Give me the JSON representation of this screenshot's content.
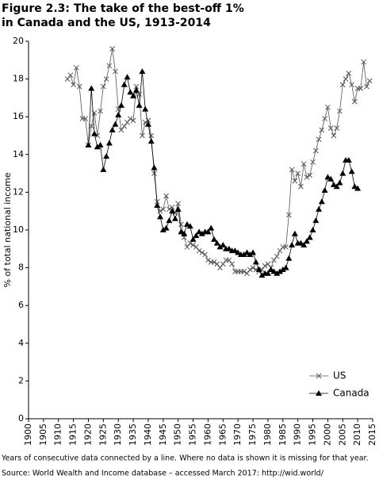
{
  "chart_data": {
    "type": "line",
    "title": [
      "Figure 2.3: The take of the best-off 1%",
      "in Canada and the US, 1913-2014"
    ],
    "y_label": "% of total national income",
    "notes": [
      "Years of consecutive data connected by a line. Where no data is shown it is missing for that year.",
      "Source: World Wealth and Income database – accessed March 2017: http://wid.world/"
    ],
    "x": [
      1913,
      1914,
      1915,
      1916,
      1917,
      1918,
      1919,
      1920,
      1921,
      1922,
      1923,
      1924,
      1925,
      1926,
      1927,
      1928,
      1929,
      1930,
      1931,
      1932,
      1933,
      1934,
      1935,
      1936,
      1937,
      1938,
      1939,
      1940,
      1941,
      1942,
      1943,
      1944,
      1945,
      1946,
      1947,
      1948,
      1949,
      1950,
      1951,
      1952,
      1953,
      1954,
      1955,
      1956,
      1957,
      1958,
      1959,
      1960,
      1961,
      1962,
      1963,
      1964,
      1965,
      1966,
      1967,
      1968,
      1969,
      1970,
      1971,
      1972,
      1973,
      1974,
      1975,
      1976,
      1977,
      1978,
      1979,
      1980,
      1981,
      1982,
      1983,
      1984,
      1985,
      1986,
      1987,
      1988,
      1989,
      1990,
      1991,
      1992,
      1993,
      1994,
      1995,
      1996,
      1997,
      1998,
      1999,
      2000,
      2001,
      2002,
      2003,
      2004,
      2005,
      2006,
      2007,
      2008,
      2009,
      2010,
      2011,
      2012,
      2013,
      2014
    ],
    "series": [
      {
        "name": "US",
        "color": "#555555",
        "marker": "x",
        "values": [
          18.0,
          18.2,
          17.7,
          18.6,
          17.6,
          15.9,
          15.9,
          14.5,
          15.5,
          16.2,
          15.0,
          16.3,
          17.6,
          18.0,
          18.7,
          19.6,
          18.4,
          16.4,
          15.3,
          15.5,
          15.7,
          15.9,
          15.8,
          17.6,
          17.2,
          15.0,
          15.7,
          15.8,
          15.0,
          13.0,
          11.5,
          11.0,
          11.1,
          11.8,
          11.1,
          11.2,
          10.9,
          11.4,
          10.3,
          9.6,
          9.1,
          9.3,
          9.2,
          9.1,
          8.9,
          8.8,
          8.7,
          8.4,
          8.3,
          8.3,
          8.2,
          8.0,
          8.2,
          8.4,
          8.4,
          8.2,
          7.8,
          7.8,
          7.8,
          7.8,
          7.7,
          7.9,
          8.0,
          7.9,
          7.8,
          7.9,
          8.1,
          8.2,
          8.0,
          8.4,
          8.6,
          8.9,
          9.1,
          9.1,
          10.8,
          13.2,
          12.6,
          13.0,
          12.3,
          13.5,
          12.8,
          12.9,
          13.6,
          14.2,
          14.8,
          15.3,
          15.9,
          16.5,
          15.4,
          15.0,
          15.4,
          16.3,
          17.7,
          18.0,
          18.3,
          17.7,
          16.8,
          17.5,
          17.5,
          18.9,
          17.6,
          17.9
        ]
      },
      {
        "name": "Canada",
        "color": "#000000",
        "marker": "triangle",
        "values": [
          null,
          null,
          null,
          null,
          null,
          null,
          null,
          14.5,
          17.5,
          15.1,
          14.4,
          14.5,
          13.2,
          13.9,
          14.6,
          15.3,
          15.6,
          16.1,
          16.6,
          17.7,
          18.1,
          17.3,
          17.1,
          17.4,
          16.6,
          18.4,
          16.4,
          15.6,
          14.7,
          13.3,
          11.3,
          10.7,
          10.0,
          10.1,
          10.5,
          11.0,
          10.6,
          11.1,
          9.9,
          9.8,
          10.3,
          10.2,
          9.5,
          9.7,
          9.9,
          9.8,
          9.9,
          9.9,
          10.1,
          9.5,
          9.3,
          9.1,
          9.2,
          9.0,
          9.0,
          8.9,
          8.9,
          8.8,
          8.7,
          8.7,
          8.8,
          8.7,
          8.8,
          8.3,
          7.9,
          7.6,
          7.7,
          7.7,
          7.9,
          7.8,
          7.7,
          7.8,
          7.9,
          8.0,
          8.5,
          9.2,
          9.8,
          9.3,
          9.3,
          9.2,
          9.4,
          9.6,
          10.0,
          10.5,
          11.1,
          11.5,
          12.1,
          12.8,
          12.7,
          12.4,
          12.3,
          12.5,
          13.0,
          13.7,
          13.7,
          13.1,
          12.3,
          12.2,
          null,
          null,
          null,
          null
        ]
      }
    ],
    "xlim": [
      1900,
      2015
    ],
    "xticks": [
      1900,
      1905,
      1910,
      1915,
      1920,
      1925,
      1930,
      1935,
      1940,
      1945,
      1950,
      1955,
      1960,
      1965,
      1970,
      1975,
      1980,
      1985,
      1990,
      1995,
      2000,
      2005,
      2010,
      2015
    ],
    "ylim": [
      0,
      20
    ],
    "yticks": [
      0,
      2,
      4,
      6,
      8,
      10,
      12,
      14,
      16,
      18,
      20
    ],
    "grid": false,
    "legend": "bottom right"
  }
}
